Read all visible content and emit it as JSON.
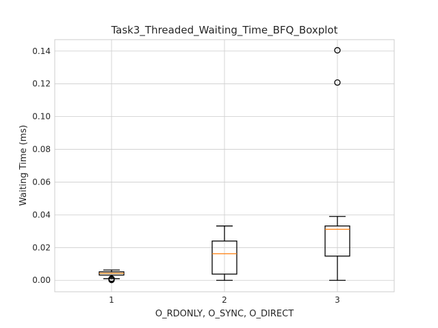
{
  "chart_data": {
    "type": "box",
    "title": "Task3_Threaded_Waiting_Time_BFQ_Boxplot",
    "xlabel": "O_RDONLY, O_SYNC, O_DIRECT",
    "ylabel": "Waiting Time (ms)",
    "ylim": [
      -0.007,
      0.147
    ],
    "yticks": [
      "0.00",
      "0.02",
      "0.04",
      "0.06",
      "0.08",
      "0.10",
      "0.12",
      "0.14"
    ],
    "grid": true,
    "categories": [
      "1",
      "2",
      "3"
    ],
    "boxes": [
      {
        "category": "1",
        "whisker_low": 0.001,
        "q1": 0.0032,
        "median": 0.0043,
        "q3": 0.0052,
        "whisker_high": 0.0063,
        "outliers": [
          0.0002,
          0.0007,
          0.001
        ]
      },
      {
        "category": "2",
        "whisker_low": 0.0,
        "q1": 0.0038,
        "median": 0.0162,
        "q3": 0.024,
        "whisker_high": 0.0332,
        "outliers": []
      },
      {
        "category": "3",
        "whisker_low": 0.0,
        "q1": 0.0148,
        "median": 0.0312,
        "q3": 0.0332,
        "whisker_high": 0.039,
        "outliers": [
          0.1208,
          0.1405
        ]
      }
    ],
    "colors": {
      "box": "#000000",
      "median": "#ff7f0e",
      "grid": "#cccccc",
      "frame": "#cccccc"
    }
  }
}
